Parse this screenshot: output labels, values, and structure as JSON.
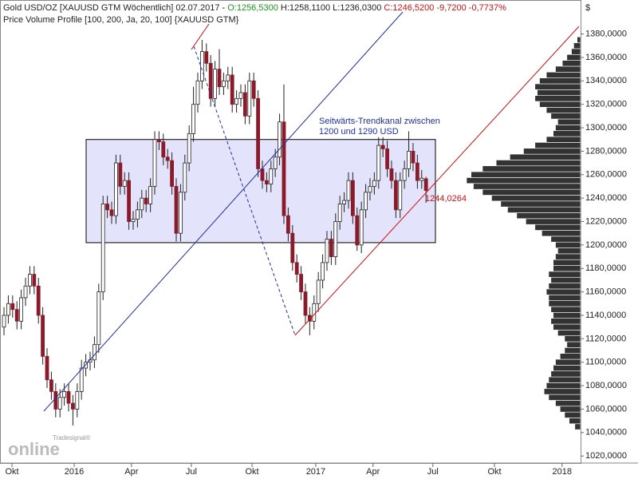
{
  "chart_data": {
    "type": "candlestick",
    "title": {
      "name": "Gold USD/OZ [XAUUSD GTM  Wöchentlich] 02.07.2017 -",
      "open": "O:1256,5300",
      "high": "H:1258,1100",
      "low": "L:1236,0300",
      "close": "C:1246,5200 -9,7200 -0,7737%"
    },
    "subtitle": "Price Volume Profile [100, 200, Ja, 20, 100] {XAUUSD GTM}",
    "currency": "$",
    "annotation": [
      "Seitwärts-Trendkanal zwischen",
      "1200 und 1290 USD"
    ],
    "price_tag": "1244,0264",
    "logo": {
      "small": "Tradesignal®",
      "big": "online"
    },
    "channel": {
      "low": 1202,
      "high": 1290
    },
    "ylim": [
      1014,
      1409
    ],
    "yticks": [
      {
        "value": 1020,
        "label": "1020,0000"
      },
      {
        "value": 1040,
        "label": "1040,0000"
      },
      {
        "value": 1060,
        "label": "1060,0000"
      },
      {
        "value": 1080,
        "label": "1080,0000"
      },
      {
        "value": 1100,
        "label": "1100,0000"
      },
      {
        "value": 1120,
        "label": "1120,0000"
      },
      {
        "value": 1140,
        "label": "1140,0000"
      },
      {
        "value": 1160,
        "label": "1160,0000"
      },
      {
        "value": 1180,
        "label": "1180,0000"
      },
      {
        "value": 1200,
        "label": "1200,0000"
      },
      {
        "value": 1220,
        "label": "1220,0000"
      },
      {
        "value": 1240,
        "label": "1240,0000"
      },
      {
        "value": 1260,
        "label": "1260,0000"
      },
      {
        "value": 1280,
        "label": "1280,0000"
      },
      {
        "value": 1300,
        "label": "1300,0000"
      },
      {
        "value": 1320,
        "label": "1320,0000"
      },
      {
        "value": 1340,
        "label": "1340,0000"
      },
      {
        "value": 1360,
        "label": "1360,0000"
      },
      {
        "value": 1380,
        "label": "1380,0000"
      }
    ],
    "xlim": [
      -0.93,
      133.9
    ],
    "xticks": [
      {
        "value": 1.85,
        "label": "Okt"
      },
      {
        "value": 16.3,
        "label": "2016"
      },
      {
        "value": 29.6,
        "label": "Apr"
      },
      {
        "value": 43.5,
        "label": "Jul"
      },
      {
        "value": 57.6,
        "label": "Okt"
      },
      {
        "value": 72.4,
        "label": "2017"
      },
      {
        "value": 85.7,
        "label": "Apr"
      },
      {
        "value": 99.6,
        "label": "Jul"
      },
      {
        "value": 113.9,
        "label": "Okt"
      },
      {
        "value": 129.6,
        "label": "2018"
      }
    ],
    "up_color": "#ffffff",
    "down_color": "#8b1a2b",
    "ohlc": [
      [
        1130,
        1147,
        1123,
        1140
      ],
      [
        1140,
        1157,
        1133,
        1150
      ],
      [
        1150,
        1157,
        1138,
        1145
      ],
      [
        1145,
        1152,
        1128,
        1135
      ],
      [
        1135,
        1162,
        1128,
        1155
      ],
      [
        1155,
        1172,
        1148,
        1165
      ],
      [
        1165,
        1182,
        1158,
        1175
      ],
      [
        1175,
        1182,
        1158,
        1165
      ],
      [
        1165,
        1172,
        1133,
        1140
      ],
      [
        1140,
        1147,
        1098,
        1105
      ],
      [
        1105,
        1112,
        1078,
        1085
      ],
      [
        1085,
        1092,
        1068,
        1075
      ],
      [
        1075,
        1082,
        1053,
        1060
      ],
      [
        1060,
        1077,
        1053,
        1070
      ],
      [
        1070,
        1082,
        1063,
        1075
      ],
      [
        1075,
        1082,
        1058,
        1065
      ],
      [
        1065,
        1072,
        1046,
        1060
      ],
      [
        1060,
        1082,
        1053,
        1075
      ],
      [
        1075,
        1102,
        1068,
        1095
      ],
      [
        1095,
        1107,
        1088,
        1100
      ],
      [
        1100,
        1109,
        1093,
        1102
      ],
      [
        1102,
        1122,
        1095,
        1115
      ],
      [
        1115,
        1167,
        1108,
        1160
      ],
      [
        1160,
        1242,
        1153,
        1235
      ],
      [
        1235,
        1242,
        1223,
        1230
      ],
      [
        1230,
        1237,
        1218,
        1225
      ],
      [
        1225,
        1277,
        1218,
        1270
      ],
      [
        1270,
        1277,
        1243,
        1250
      ],
      [
        1250,
        1262,
        1243,
        1255
      ],
      [
        1255,
        1262,
        1213,
        1220
      ],
      [
        1220,
        1229,
        1213,
        1222
      ],
      [
        1222,
        1237,
        1215,
        1230
      ],
      [
        1230,
        1247,
        1223,
        1240
      ],
      [
        1240,
        1247,
        1228,
        1235
      ],
      [
        1235,
        1257,
        1228,
        1250
      ],
      [
        1250,
        1297,
        1243,
        1290
      ],
      [
        1290,
        1297,
        1281,
        1288
      ],
      [
        1288,
        1295,
        1268,
        1275
      ],
      [
        1275,
        1282,
        1265,
        1272
      ],
      [
        1272,
        1279,
        1243,
        1250
      ],
      [
        1250,
        1257,
        1203,
        1210
      ],
      [
        1210,
        1252,
        1203,
        1245
      ],
      [
        1245,
        1277,
        1238,
        1270
      ],
      [
        1270,
        1302,
        1263,
        1295
      ],
      [
        1295,
        1335,
        1288,
        1320
      ],
      [
        1320,
        1347,
        1313,
        1340
      ],
      [
        1340,
        1375,
        1333,
        1365
      ],
      [
        1365,
        1372,
        1348,
        1355
      ],
      [
        1355,
        1362,
        1318,
        1325
      ],
      [
        1325,
        1357,
        1318,
        1350
      ],
      [
        1350,
        1367,
        1328,
        1335
      ],
      [
        1335,
        1347,
        1328,
        1340
      ],
      [
        1340,
        1352,
        1333,
        1345
      ],
      [
        1345,
        1352,
        1313,
        1320
      ],
      [
        1320,
        1332,
        1313,
        1325
      ],
      [
        1325,
        1337,
        1318,
        1330
      ],
      [
        1330,
        1337,
        1303,
        1310
      ],
      [
        1310,
        1347,
        1303,
        1340
      ],
      [
        1340,
        1347,
        1318,
        1325
      ],
      [
        1325,
        1332,
        1258,
        1265
      ],
      [
        1265,
        1272,
        1248,
        1255
      ],
      [
        1255,
        1262,
        1245,
        1252
      ],
      [
        1252,
        1272,
        1245,
        1265
      ],
      [
        1265,
        1282,
        1258,
        1275
      ],
      [
        1275,
        1312,
        1268,
        1305
      ],
      [
        1305,
        1337,
        1218,
        1225
      ],
      [
        1225,
        1232,
        1203,
        1210
      ],
      [
        1210,
        1217,
        1178,
        1185
      ],
      [
        1185,
        1192,
        1168,
        1175
      ],
      [
        1175,
        1182,
        1153,
        1160
      ],
      [
        1160,
        1167,
        1133,
        1140
      ],
      [
        1140,
        1147,
        1123,
        1135
      ],
      [
        1135,
        1157,
        1128,
        1150
      ],
      [
        1150,
        1177,
        1143,
        1170
      ],
      [
        1170,
        1192,
        1163,
        1185
      ],
      [
        1185,
        1212,
        1178,
        1205
      ],
      [
        1205,
        1212,
        1183,
        1190
      ],
      [
        1190,
        1227,
        1183,
        1220
      ],
      [
        1220,
        1242,
        1213,
        1235
      ],
      [
        1235,
        1245,
        1228,
        1238
      ],
      [
        1238,
        1262,
        1231,
        1255
      ],
      [
        1255,
        1262,
        1218,
        1225
      ],
      [
        1225,
        1232,
        1195,
        1200
      ],
      [
        1200,
        1237,
        1193,
        1230
      ],
      [
        1230,
        1252,
        1223,
        1245
      ],
      [
        1245,
        1257,
        1238,
        1250
      ],
      [
        1250,
        1262,
        1243,
        1255
      ],
      [
        1255,
        1292,
        1248,
        1285
      ],
      [
        1285,
        1292,
        1275,
        1282
      ],
      [
        1282,
        1289,
        1258,
        1265
      ],
      [
        1265,
        1272,
        1248,
        1255
      ],
      [
        1255,
        1262,
        1223,
        1230
      ],
      [
        1230,
        1262,
        1223,
        1255
      ],
      [
        1255,
        1272,
        1248,
        1265
      ],
      [
        1265,
        1297,
        1258,
        1280
      ],
      [
        1280,
        1287,
        1263,
        1270
      ],
      [
        1270,
        1277,
        1248,
        1255
      ],
      [
        1255,
        1264,
        1248,
        1257
      ],
      [
        1256.53,
        1258.11,
        1236.03,
        1246.52
      ]
    ],
    "volume_profile": {
      "color": "#333333",
      "prices": [
        1045,
        1050,
        1055,
        1060,
        1065,
        1070,
        1075,
        1080,
        1085,
        1090,
        1095,
        1100,
        1105,
        1110,
        1115,
        1120,
        1125,
        1130,
        1135,
        1140,
        1145,
        1150,
        1155,
        1160,
        1165,
        1170,
        1175,
        1180,
        1185,
        1190,
        1195,
        1200,
        1205,
        1210,
        1215,
        1220,
        1225,
        1230,
        1235,
        1240,
        1245,
        1250,
        1255,
        1260,
        1265,
        1270,
        1275,
        1280,
        1285,
        1290,
        1295,
        1300,
        1305,
        1310,
        1315,
        1320,
        1325,
        1330,
        1335,
        1340,
        1345,
        1350,
        1355,
        1360,
        1365,
        1370,
        1375
      ],
      "volumes": [
        5,
        10,
        14,
        18,
        22,
        28,
        32,
        30,
        28,
        26,
        24,
        22,
        18,
        14,
        12,
        14,
        20,
        24,
        26,
        24,
        26,
        28,
        28,
        30,
        28,
        26,
        28,
        24,
        24,
        22,
        20,
        22,
        26,
        34,
        40,
        48,
        56,
        64,
        70,
        78,
        86,
        94,
        100,
        96,
        86,
        74,
        62,
        50,
        40,
        30,
        24,
        22,
        20,
        26,
        30,
        36,
        40,
        38,
        40,
        36,
        30,
        22,
        16,
        12,
        8,
        6,
        3
      ]
    }
  }
}
